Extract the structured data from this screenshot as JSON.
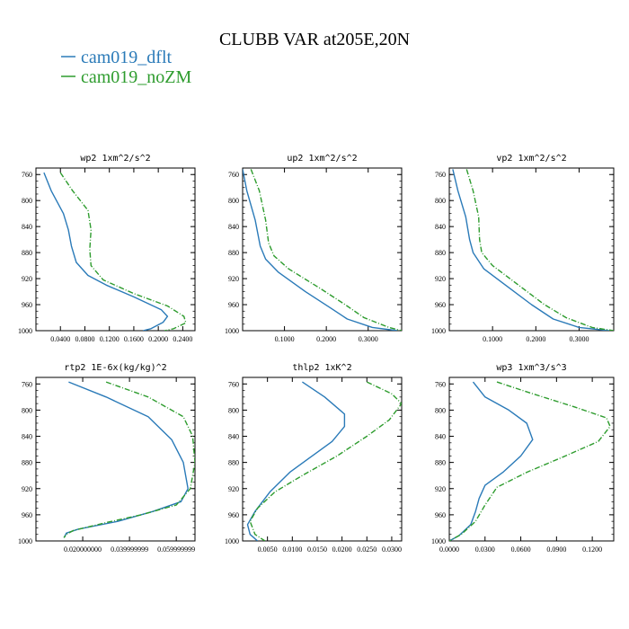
{
  "figure": {
    "title": "CLUBB VAR at205E,20N"
  },
  "colors": {
    "dflt": "#2a7ab8",
    "noZM": "#2e9c2e",
    "axis": "#000000"
  },
  "legend": {
    "entries": [
      {
        "label": "cam019_dflt",
        "color_key": "dflt",
        "style": "solid"
      },
      {
        "label": "cam019_noZM",
        "color_key": "noZM",
        "style": "dashdot"
      }
    ]
  },
  "chart_data": [
    {
      "type": "line",
      "title": "wp2   1xm^2/s^2",
      "xlim": [
        0.0,
        0.26
      ],
      "ylim": [
        1000,
        750
      ],
      "yticks": [
        "760",
        "800",
        "840",
        "880",
        "920",
        "960",
        "1000"
      ],
      "ytick_values": [
        760,
        800,
        840,
        880,
        920,
        960,
        1000
      ],
      "xticks": [
        "0.0400",
        "0.0800",
        "0.1200",
        "0.1600",
        "0.2000",
        "0.2400"
      ],
      "xtick_values": [
        0.04,
        0.08,
        0.12,
        0.16,
        0.2,
        0.24
      ],
      "series": [
        {
          "name": "cam019_dflt",
          "color_key": "dflt",
          "dash": "",
          "points": [
            [
              0.013,
              757
            ],
            [
              0.025,
              785
            ],
            [
              0.045,
              820
            ],
            [
              0.053,
              845
            ],
            [
              0.058,
              870
            ],
            [
              0.066,
              895
            ],
            [
              0.085,
              915
            ],
            [
              0.115,
              930
            ],
            [
              0.16,
              948
            ],
            [
              0.205,
              968
            ],
            [
              0.215,
              978
            ],
            [
              0.208,
              987
            ],
            [
              0.188,
              997
            ],
            [
              0.175,
              1000
            ]
          ]
        },
        {
          "name": "cam019_noZM",
          "color_key": "noZM",
          "dash": "6,2,1,2",
          "points": [
            [
              0.04,
              757
            ],
            [
              0.06,
              785
            ],
            [
              0.085,
              815
            ],
            [
              0.09,
              845
            ],
            [
              0.088,
              875
            ],
            [
              0.09,
              900
            ],
            [
              0.11,
              922
            ],
            [
              0.16,
              943
            ],
            [
              0.215,
              962
            ],
            [
              0.242,
              978
            ],
            [
              0.245,
              988
            ],
            [
              0.225,
              997
            ],
            [
              0.21,
              1000
            ]
          ]
        }
      ]
    },
    {
      "type": "line",
      "title": "up2   1xm^2/s^2",
      "xlim": [
        0.0,
        0.38
      ],
      "ylim": [
        1000,
        750
      ],
      "yticks": [
        "760",
        "800",
        "840",
        "880",
        "920",
        "960",
        "1000"
      ],
      "ytick_values": [
        760,
        800,
        840,
        880,
        920,
        960,
        1000
      ],
      "xticks": [
        "0.1000",
        "0.2000",
        "0.3000"
      ],
      "xtick_values": [
        0.1,
        0.2,
        0.3
      ],
      "series": [
        {
          "name": "cam019_dflt",
          "color_key": "dflt",
          "dash": "",
          "points": [
            [
              0.0,
              752
            ],
            [
              0.01,
              785
            ],
            [
              0.03,
              830
            ],
            [
              0.042,
              870
            ],
            [
              0.055,
              890
            ],
            [
              0.085,
              910
            ],
            [
              0.15,
              940
            ],
            [
              0.21,
              965
            ],
            [
              0.25,
              982
            ],
            [
              0.31,
              995
            ],
            [
              0.37,
              1000
            ]
          ]
        },
        {
          "name": "cam019_noZM",
          "color_key": "noZM",
          "dash": "6,2,1,2",
          "points": [
            [
              0.02,
              752
            ],
            [
              0.04,
              785
            ],
            [
              0.055,
              830
            ],
            [
              0.062,
              865
            ],
            [
              0.075,
              885
            ],
            [
              0.11,
              905
            ],
            [
              0.185,
              935
            ],
            [
              0.245,
              960
            ],
            [
              0.29,
              980
            ],
            [
              0.35,
              995
            ],
            [
              0.38,
              1000
            ]
          ]
        }
      ]
    },
    {
      "type": "line",
      "title": "vp2   1xm^2/s^2",
      "xlim": [
        0.0,
        0.38
      ],
      "ylim": [
        1000,
        750
      ],
      "yticks": [
        "760",
        "800",
        "840",
        "880",
        "920",
        "960",
        "1000"
      ],
      "ytick_values": [
        760,
        800,
        840,
        880,
        920,
        960,
        1000
      ],
      "xticks": [
        "0.1000",
        "0.2000",
        "0.3000"
      ],
      "xtick_values": [
        0.1,
        0.2,
        0.3
      ],
      "series": [
        {
          "name": "cam019_dflt",
          "color_key": "dflt",
          "dash": "",
          "points": [
            [
              0.008,
              752
            ],
            [
              0.02,
              785
            ],
            [
              0.038,
              825
            ],
            [
              0.047,
              860
            ],
            [
              0.055,
              880
            ],
            [
              0.08,
              905
            ],
            [
              0.13,
              930
            ],
            [
              0.19,
              960
            ],
            [
              0.24,
              982
            ],
            [
              0.3,
              995
            ],
            [
              0.37,
              1000
            ]
          ]
        },
        {
          "name": "cam019_noZM",
          "color_key": "noZM",
          "dash": "6,2,1,2",
          "points": [
            [
              0.04,
              752
            ],
            [
              0.055,
              785
            ],
            [
              0.068,
              825
            ],
            [
              0.07,
              860
            ],
            [
              0.075,
              880
            ],
            [
              0.1,
              900
            ],
            [
              0.16,
              930
            ],
            [
              0.22,
              960
            ],
            [
              0.27,
              980
            ],
            [
              0.33,
              995
            ],
            [
              0.38,
              1000
            ]
          ]
        }
      ]
    },
    {
      "type": "line",
      "title": "rtp2   1E-6x(kg/kg)^2",
      "xlim": [
        0.0,
        0.068
      ],
      "ylim": [
        1000,
        750
      ],
      "yticks": [
        "760",
        "800",
        "840",
        "880",
        "920",
        "960",
        "1000"
      ],
      "ytick_values": [
        760,
        800,
        840,
        880,
        920,
        960,
        1000
      ],
      "xticks": [
        "0.020000000",
        "0.039999999",
        "0.059999999"
      ],
      "xtick_values": [
        0.02,
        0.04,
        0.06
      ],
      "series": [
        {
          "name": "cam019_dflt",
          "color_key": "dflt",
          "dash": "",
          "points": [
            [
              0.014,
              757
            ],
            [
              0.03,
              780
            ],
            [
              0.048,
              810
            ],
            [
              0.058,
              845
            ],
            [
              0.063,
              880
            ],
            [
              0.065,
              920
            ],
            [
              0.062,
              940
            ],
            [
              0.05,
              955
            ],
            [
              0.035,
              970
            ],
            [
              0.018,
              982
            ],
            [
              0.013,
              988
            ],
            [
              0.012,
              995
            ]
          ]
        },
        {
          "name": "cam019_noZM",
          "color_key": "noZM",
          "dash": "6,2,1,2",
          "points": [
            [
              0.03,
              757
            ],
            [
              0.048,
              780
            ],
            [
              0.063,
              810
            ],
            [
              0.067,
              840
            ],
            [
              0.068,
              880
            ],
            [
              0.066,
              920
            ],
            [
              0.06,
              945
            ],
            [
              0.045,
              960
            ],
            [
              0.03,
              972
            ],
            [
              0.016,
              984
            ],
            [
              0.013,
              990
            ],
            [
              0.012,
              995
            ]
          ]
        }
      ]
    },
    {
      "type": "line",
      "title": "thlp2   1xK^2",
      "xlim": [
        0.0,
        0.032
      ],
      "ylim": [
        1000,
        750
      ],
      "yticks": [
        "760",
        "800",
        "840",
        "880",
        "920",
        "960",
        "1000"
      ],
      "ytick_values": [
        760,
        800,
        840,
        880,
        920,
        960,
        1000
      ],
      "xticks": [
        "0.0050",
        "0.0100",
        "0.0150",
        "0.0200",
        "0.0250",
        "0.0300"
      ],
      "xtick_values": [
        0.005,
        0.01,
        0.015,
        0.02,
        0.025,
        0.03
      ],
      "series": [
        {
          "name": "cam019_dflt",
          "color_key": "dflt",
          "dash": "",
          "points": [
            [
              0.012,
              757
            ],
            [
              0.0165,
              780
            ],
            [
              0.0205,
              806
            ],
            [
              0.0205,
              825
            ],
            [
              0.018,
              848
            ],
            [
              0.014,
              870
            ],
            [
              0.0095,
              895
            ],
            [
              0.0055,
              925
            ],
            [
              0.0025,
              955
            ],
            [
              0.001,
              975
            ],
            [
              0.0015,
              990
            ],
            [
              0.003,
              1000
            ]
          ]
        },
        {
          "name": "cam019_noZM",
          "color_key": "noZM",
          "dash": "6,2,1,2",
          "points": [
            [
              0.025,
              757
            ],
            [
              0.03,
              775
            ],
            [
              0.032,
              790
            ],
            [
              0.0295,
              815
            ],
            [
              0.025,
              840
            ],
            [
              0.019,
              870
            ],
            [
              0.012,
              900
            ],
            [
              0.0065,
              925
            ],
            [
              0.003,
              950
            ],
            [
              0.0015,
              970
            ],
            [
              0.0025,
              990
            ],
            [
              0.0045,
              1000
            ]
          ]
        }
      ]
    },
    {
      "type": "line",
      "title": "wp3   1xm^3/s^3",
      "xlim": [
        0.0,
        0.138
      ],
      "ylim": [
        1000,
        750
      ],
      "yticks": [
        "760",
        "800",
        "840",
        "880",
        "920",
        "960",
        "1000"
      ],
      "ytick_values": [
        760,
        800,
        840,
        880,
        920,
        960,
        1000
      ],
      "xticks": [
        "0.0000",
        "0.0300",
        "0.0600",
        "0.0900",
        "0.1200"
      ],
      "xtick_values": [
        0.0,
        0.03,
        0.06,
        0.09,
        0.12
      ],
      "series": [
        {
          "name": "cam019_dflt",
          "color_key": "dflt",
          "dash": "",
          "points": [
            [
              0.02,
              757
            ],
            [
              0.03,
              780
            ],
            [
              0.05,
              800
            ],
            [
              0.065,
              820
            ],
            [
              0.07,
              845
            ],
            [
              0.06,
              870
            ],
            [
              0.045,
              895
            ],
            [
              0.03,
              915
            ],
            [
              0.025,
              935
            ],
            [
              0.022,
              955
            ],
            [
              0.018,
              975
            ],
            [
              0.008,
              992
            ],
            [
              0.0,
              1000
            ]
          ]
        },
        {
          "name": "cam019_noZM",
          "color_key": "noZM",
          "dash": "6,2,1,2",
          "points": [
            [
              0.04,
              757
            ],
            [
              0.07,
              775
            ],
            [
              0.105,
              795
            ],
            [
              0.132,
              812
            ],
            [
              0.135,
              825
            ],
            [
              0.125,
              848
            ],
            [
              0.095,
              872
            ],
            [
              0.065,
              895
            ],
            [
              0.04,
              918
            ],
            [
              0.03,
              945
            ],
            [
              0.022,
              970
            ],
            [
              0.01,
              990
            ],
            [
              0.0,
              1000
            ]
          ]
        }
      ]
    }
  ]
}
